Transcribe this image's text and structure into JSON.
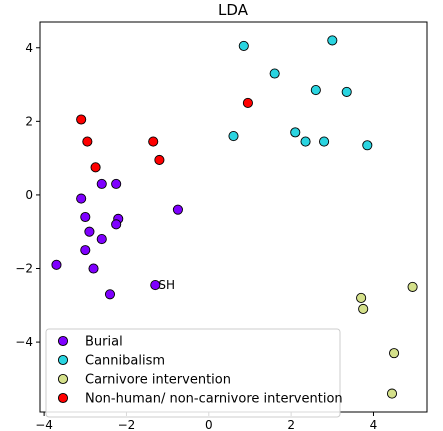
{
  "chart_data": {
    "type": "scatter",
    "title": "LDA",
    "xlim": [
      -4.1,
      5.3
    ],
    "ylim": [
      -5.9,
      4.7
    ],
    "xticks": [
      -4,
      -2,
      0,
      2,
      4
    ],
    "yticks": [
      -4,
      -2,
      0,
      2,
      4
    ],
    "xtick_labels": [
      "−4",
      "−2",
      "0",
      "2",
      "4"
    ],
    "ytick_labels": [
      "−4",
      "−2",
      "0",
      "2",
      "4"
    ],
    "grid": false,
    "legend_position": "bottom-left",
    "series": [
      {
        "name": "Burial",
        "color": "#7f00ff",
        "points": [
          [
            -3.7,
            -1.9
          ],
          [
            -3.1,
            -0.1
          ],
          [
            -3.0,
            -0.6
          ],
          [
            -2.9,
            -1.0
          ],
          [
            -3.0,
            -1.5
          ],
          [
            -2.8,
            -2.0
          ],
          [
            -2.6,
            -1.2
          ],
          [
            -2.6,
            0.3
          ],
          [
            -2.25,
            0.3
          ],
          [
            -2.2,
            -0.65
          ],
          [
            -2.25,
            -0.8
          ],
          [
            -2.4,
            -2.7
          ],
          [
            -0.75,
            -0.4
          ],
          [
            -1.3,
            -2.45
          ]
        ]
      },
      {
        "name": "Cannibalism",
        "color": "#2ad4e0",
        "points": [
          [
            0.85,
            4.05
          ],
          [
            3.0,
            4.2
          ],
          [
            1.6,
            3.3
          ],
          [
            2.6,
            2.85
          ],
          [
            3.35,
            2.8
          ],
          [
            0.6,
            1.6
          ],
          [
            2.1,
            1.7
          ],
          [
            2.35,
            1.45
          ],
          [
            2.8,
            1.45
          ],
          [
            3.85,
            1.35
          ]
        ]
      },
      {
        "name": "Carnivore intervention",
        "color": "#d4e08a",
        "points": [
          [
            3.7,
            -2.8
          ],
          [
            3.75,
            -3.1
          ],
          [
            4.95,
            -2.5
          ],
          [
            4.5,
            -4.3
          ],
          [
            4.45,
            -5.4
          ]
        ]
      },
      {
        "name": "Non-human/ non-carnivore intervention",
        "color": "#ff0000",
        "points": [
          [
            -3.1,
            2.05
          ],
          [
            -2.95,
            1.45
          ],
          [
            -2.75,
            0.75
          ],
          [
            -1.35,
            1.45
          ],
          [
            -1.2,
            0.95
          ],
          [
            0.95,
            2.5
          ]
        ]
      }
    ],
    "annotations": [
      {
        "text": "SH",
        "x": -1.25,
        "y": -2.45
      }
    ]
  }
}
